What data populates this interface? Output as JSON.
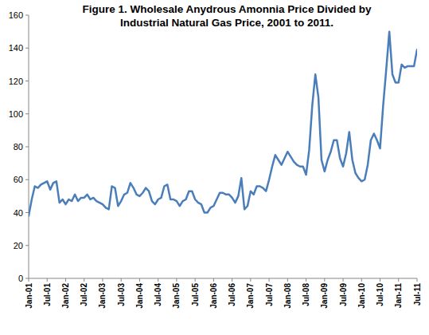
{
  "chart_data": {
    "type": "line",
    "title": "Figure 1.  Wholesale Anydrous Amonnia Price Divided by\nIndustrial Natural Gas Price, 2001 to 2011.",
    "categories": [
      "Jan-01",
      null,
      null,
      null,
      null,
      null,
      "Jul-01",
      null,
      null,
      null,
      null,
      null,
      "Jan-02",
      null,
      null,
      null,
      null,
      null,
      "Jul-02",
      null,
      null,
      null,
      null,
      null,
      "Jan-03",
      null,
      null,
      null,
      null,
      null,
      "Jul-03",
      null,
      null,
      null,
      null,
      null,
      "Jan-04",
      null,
      null,
      null,
      null,
      null,
      "Jul-04",
      null,
      null,
      null,
      null,
      null,
      "Jan-05",
      null,
      null,
      null,
      null,
      null,
      "Jul-05",
      null,
      null,
      null,
      null,
      null,
      "Jan-06",
      null,
      null,
      null,
      null,
      null,
      "Jul-06",
      null,
      null,
      null,
      null,
      null,
      "Jan-07",
      null,
      null,
      null,
      null,
      null,
      "Jul-07",
      null,
      null,
      null,
      null,
      null,
      "Jan-08",
      null,
      null,
      null,
      null,
      null,
      "Jul-08",
      null,
      null,
      null,
      null,
      null,
      "Jan-09",
      null,
      null,
      null,
      null,
      null,
      "Jul-09",
      null,
      null,
      null,
      null,
      null,
      "Jan-10",
      null,
      null,
      null,
      null,
      null,
      "Jul-10",
      null,
      null,
      null,
      null,
      null,
      "Jan-11",
      null,
      null,
      null,
      null,
      null,
      "Jul-11"
    ],
    "values": [
      38,
      48,
      56,
      55,
      57,
      58,
      59,
      54,
      58,
      59,
      46,
      48,
      45,
      48,
      47,
      51,
      47,
      49,
      49,
      51,
      48,
      49,
      47,
      46,
      45,
      43,
      42,
      56,
      55,
      44,
      47,
      51,
      52,
      58,
      55,
      51,
      50,
      52,
      55,
      53,
      47,
      45,
      48,
      49,
      56,
      57,
      48,
      48,
      47,
      44,
      47,
      48,
      53,
      53,
      48,
      46,
      45,
      40,
      40,
      43,
      44,
      48,
      52,
      52,
      51,
      51,
      49,
      46,
      50,
      61,
      42,
      44,
      53,
      51,
      56,
      56,
      55,
      53,
      60,
      68,
      75,
      72,
      69,
      73,
      77,
      74,
      71,
      69,
      68,
      68,
      63,
      78,
      105,
      124,
      110,
      72,
      65,
      72,
      77,
      84,
      84,
      73,
      68,
      76,
      89,
      72,
      64,
      61,
      59,
      60,
      69,
      84,
      88,
      84,
      79,
      105,
      127,
      150,
      124,
      119,
      119,
      130,
      128,
      129,
      129,
      129,
      139
    ],
    "color": "#4a7ebb",
    "ylim": [
      0,
      160
    ],
    "yticks": [
      0,
      20,
      40,
      60,
      80,
      100,
      120,
      140,
      160
    ],
    "grid": false
  }
}
